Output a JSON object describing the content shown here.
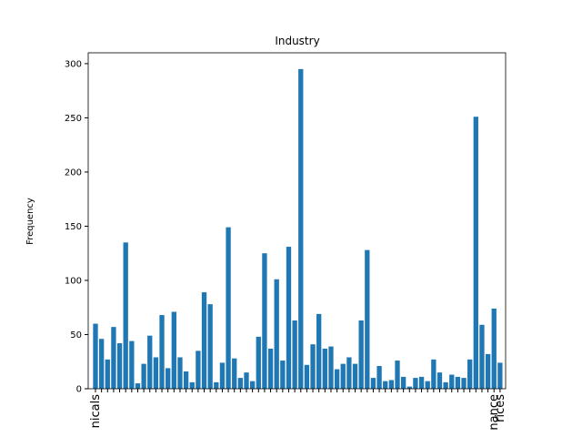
{
  "chart_data": {
    "type": "bar",
    "title": "Industry",
    "y_label": "Frequency",
    "categories": [
      "nicals",
      null,
      null,
      null,
      null,
      null,
      null,
      null,
      null,
      null,
      null,
      null,
      null,
      null,
      null,
      null,
      null,
      null,
      null,
      null,
      null,
      null,
      null,
      null,
      null,
      null,
      null,
      null,
      null,
      null,
      null,
      null,
      null,
      null,
      null,
      null,
      null,
      null,
      null,
      null,
      null,
      null,
      null,
      null,
      null,
      null,
      null,
      null,
      null,
      null,
      null,
      null,
      null,
      null,
      null,
      null,
      null,
      null,
      null,
      null,
      null,
      null,
      null,
      null,
      null,
      null,
      "nance",
      "rices"
    ],
    "values": [
      60,
      46,
      27,
      57,
      42,
      135,
      44,
      5,
      23,
      49,
      29,
      68,
      19,
      71,
      29,
      16,
      6,
      35,
      89,
      78,
      6,
      24,
      149,
      28,
      10,
      15,
      7,
      48,
      125,
      37,
      101,
      26,
      131,
      63,
      295,
      22,
      41,
      69,
      37,
      39,
      18,
      23,
      29,
      23,
      63,
      128,
      10,
      21,
      7,
      8,
      26,
      11,
      2,
      10,
      11,
      7,
      27,
      15,
      6,
      13,
      11,
      10,
      27,
      251,
      59,
      32,
      74,
      24
    ],
    "color": "#1f77b4",
    "ylim": [
      0,
      310
    ],
    "yticks": [
      0,
      50,
      100,
      150,
      200,
      250,
      300
    ],
    "grid": false
  }
}
